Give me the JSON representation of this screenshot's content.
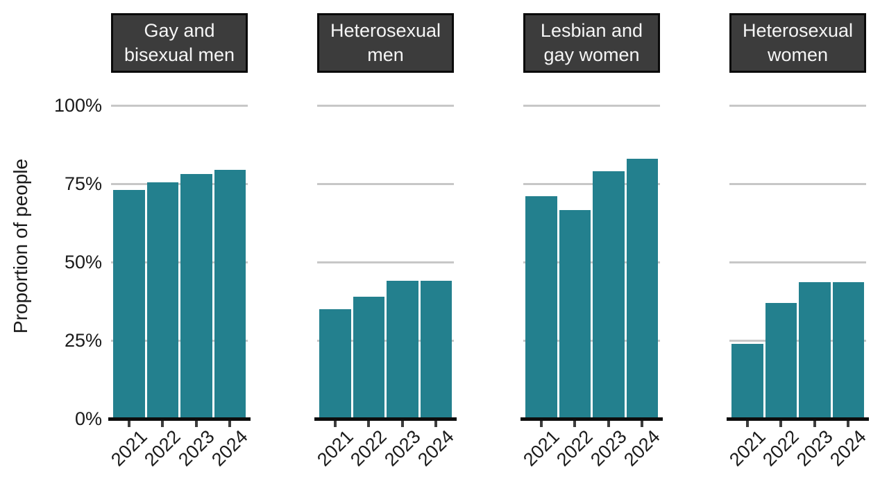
{
  "chart_data": {
    "type": "bar",
    "title": "",
    "xlabel": "",
    "ylabel": "Proportion of people",
    "ylim": [
      0,
      100
    ],
    "grid": "horizontal gridlines at 25/50/75/100",
    "legend": "none",
    "categories": [
      "2021",
      "2022",
      "2023",
      "2024"
    ],
    "facets": [
      {
        "label": "Gay and bisexual men",
        "lines": [
          "Gay and",
          "bisexual men"
        ],
        "values": [
          73,
          75.5,
          78,
          79.5
        ]
      },
      {
        "label": "Heterosexual men",
        "lines": [
          "Heterosexual",
          "men"
        ],
        "values": [
          35,
          39,
          44,
          44
        ]
      },
      {
        "label": "Lesbian and gay women",
        "lines": [
          "Lesbian and",
          "gay women"
        ],
        "values": [
          71,
          66.5,
          79,
          83
        ]
      },
      {
        "label": "Heterosexual women",
        "lines": [
          "Heterosexual",
          "women"
        ],
        "values": [
          24,
          37,
          43.5,
          43.5
        ]
      }
    ],
    "yticks": [
      {
        "label": "0%",
        "value": 0
      },
      {
        "label": "25%",
        "value": 25
      },
      {
        "label": "50%",
        "value": 50
      },
      {
        "label": "75%",
        "value": 75
      },
      {
        "label": "100%",
        "value": 100
      }
    ],
    "colors": {
      "bar": "#23808e",
      "strip_bg": "#3c3c3c",
      "strip_border": "#0a0a0a",
      "strip_text": "#f5f5f5",
      "gridline": "#c7c7c7",
      "axis_line": "#0d0d0d",
      "tick": "#3d3d3d",
      "text": "#1a1a1a"
    }
  }
}
